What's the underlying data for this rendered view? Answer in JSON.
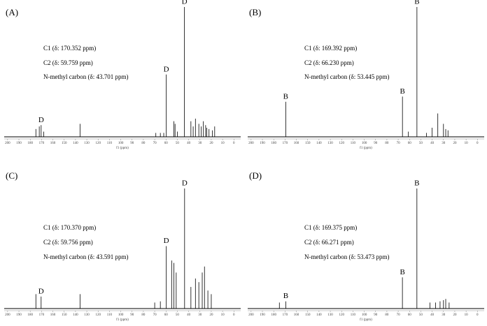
{
  "chart_data": [
    {
      "type": "stem",
      "panel_label": "(A)",
      "x_label": "f1 (ppm)",
      "color": "#000000",
      "annotations": [
        "C1 (δ: 170.352 ppm)",
        "C2 (δ: 59.759 ppm)",
        "N-methyl carbon (δ: 43.701 ppm)"
      ],
      "peak_labels": [
        {
          "label": "D",
          "x": 170.352
        },
        {
          "label": "D",
          "x": 59.759
        },
        {
          "label": "D",
          "x": 43.701
        }
      ],
      "x": [
        175,
        172,
        170.352,
        168,
        136,
        69,
        65,
        62,
        59.759,
        53,
        52,
        50,
        43.701,
        38,
        36,
        34,
        31,
        29,
        27,
        25,
        24,
        22,
        19,
        17
      ],
      "values": [
        6,
        8,
        9,
        4,
        10,
        3,
        3,
        3,
        48,
        12,
        10,
        4,
        100,
        12,
        8,
        14,
        10,
        8,
        12,
        9,
        7,
        6,
        5,
        8
      ],
      "xlim": [
        203,
        -6
      ],
      "xticks": [
        200,
        190,
        180,
        170,
        160,
        150,
        140,
        130,
        120,
        110,
        100,
        90,
        80,
        70,
        60,
        50,
        40,
        30,
        20,
        10,
        0
      ]
    },
    {
      "type": "stem",
      "panel_label": "(B)",
      "x_label": "f1 (ppm)",
      "color": "#000000",
      "annotations": [
        "C1 (δ: 169.392 ppm)",
        "C2 (δ: 66.230 ppm)",
        "N-methyl carbon (δ: 53.445 ppm)"
      ],
      "peak_labels": [
        {
          "label": "B",
          "x": 169.392
        },
        {
          "label": "B",
          "x": 66.23
        },
        {
          "label": "B",
          "x": 53.445
        }
      ],
      "x": [
        169.392,
        66.23,
        61,
        53.445,
        45,
        40,
        35,
        30,
        28,
        26
      ],
      "values": [
        27,
        31,
        4,
        100,
        3,
        7,
        18,
        10,
        6,
        5
      ],
      "xlim": [
        203,
        -6
      ],
      "xticks": [
        200,
        190,
        180,
        170,
        160,
        150,
        140,
        130,
        120,
        110,
        100,
        90,
        80,
        70,
        60,
        50,
        40,
        30,
        20,
        10,
        0
      ]
    },
    {
      "type": "stem",
      "panel_label": "(C)",
      "x_label": "f1 (ppm)",
      "color": "#000000",
      "annotations": [
        "C1 (δ: 170.370 ppm)",
        "C2 (δ: 59.756 ppm)",
        "N-methyl carbon (δ: 43.591 ppm)"
      ],
      "peak_labels": [
        {
          "label": "D",
          "x": 170.37
        },
        {
          "label": "D",
          "x": 59.756
        },
        {
          "label": "D",
          "x": 43.591
        }
      ],
      "x": [
        175,
        170.37,
        136,
        70,
        65,
        59.756,
        55,
        53,
        51,
        43.591,
        38,
        34,
        31,
        28,
        26,
        23,
        20
      ],
      "values": [
        12,
        10,
        12,
        5,
        6,
        52,
        40,
        38,
        30,
        100,
        18,
        25,
        22,
        30,
        35,
        15,
        12
      ],
      "xlim": [
        203,
        -6
      ],
      "xticks": [
        200,
        190,
        180,
        170,
        160,
        150,
        140,
        130,
        120,
        110,
        100,
        90,
        80,
        70,
        60,
        50,
        40,
        30,
        20,
        10,
        0
      ]
    },
    {
      "type": "stem",
      "panel_label": "(D)",
      "x_label": "f1 (ppm)",
      "color": "#000000",
      "annotations": [
        "C1 (δ: 169.375 ppm)",
        "C2 (δ: 66.271 ppm)",
        "N-methyl carbon (δ: 53.473 ppm)"
      ],
      "peak_labels": [
        {
          "label": "B",
          "x": 169.375
        },
        {
          "label": "B",
          "x": 66.271
        },
        {
          "label": "B",
          "x": 53.473
        }
      ],
      "x": [
        175,
        169.375,
        66.271,
        53.473,
        42,
        37,
        33,
        30,
        28,
        25
      ],
      "values": [
        5,
        6,
        26,
        100,
        5,
        5,
        6,
        7,
        8,
        5
      ],
      "xlim": [
        203,
        -6
      ],
      "xticks": [
        200,
        190,
        180,
        170,
        160,
        150,
        140,
        130,
        120,
        110,
        100,
        90,
        80,
        70,
        60,
        50,
        40,
        30,
        20,
        10,
        0
      ]
    }
  ]
}
